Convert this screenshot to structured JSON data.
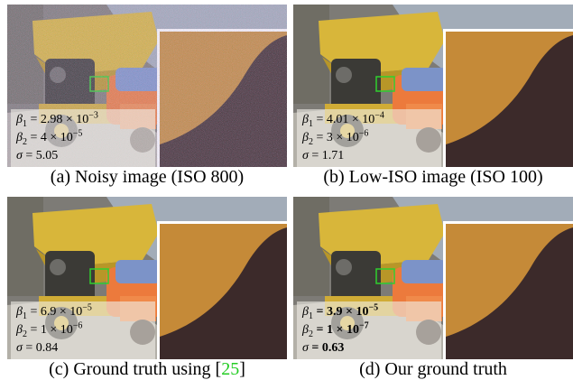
{
  "panels": [
    {
      "caption": [
        "(a) Noisy image (ISO 800)"
      ],
      "noise": true,
      "bold": false,
      "params": [
        {
          "name": "β",
          "sub": "1",
          "value": " = 2.98 × 10",
          "exp": "−3"
        },
        {
          "name": "β",
          "sub": "2",
          "value": " = 4 × 10",
          "exp": "−5"
        },
        {
          "name": "σ",
          "value": " = 5.05"
        }
      ]
    },
    {
      "caption": [
        "(b) Low-ISO image (ISO 100)"
      ],
      "noise": false,
      "bold": false,
      "params": [
        {
          "name": "β",
          "sub": "1",
          "value": " = 4.01 × 10",
          "exp": "−4"
        },
        {
          "name": "β",
          "sub": "2",
          "value": " = 3 × 10",
          "exp": "−6"
        },
        {
          "name": "σ",
          "value": " = 1.71"
        }
      ]
    },
    {
      "caption": [
        "(c) Ground truth using [",
        "25",
        "]"
      ],
      "noise": false,
      "bold": false,
      "params": [
        {
          "name": "β",
          "sub": "1",
          "value": " = 6.9 × 10",
          "exp": "−5"
        },
        {
          "name": "β",
          "sub": "2",
          "value": " = 1 × 10",
          "exp": "−6"
        },
        {
          "name": "σ",
          "value": " = 0.84"
        }
      ]
    },
    {
      "caption": [
        "(d) Our ground truth"
      ],
      "noise": false,
      "bold": true,
      "params": [
        {
          "name": "β",
          "sub": "1",
          "value": " = 3.9 × 10",
          "exp": "−5"
        },
        {
          "name": "β",
          "sub": "2",
          "value": " = 1 × 10",
          "exp": "−7"
        },
        {
          "name": "σ",
          "value": " = 0.63"
        }
      ]
    }
  ]
}
